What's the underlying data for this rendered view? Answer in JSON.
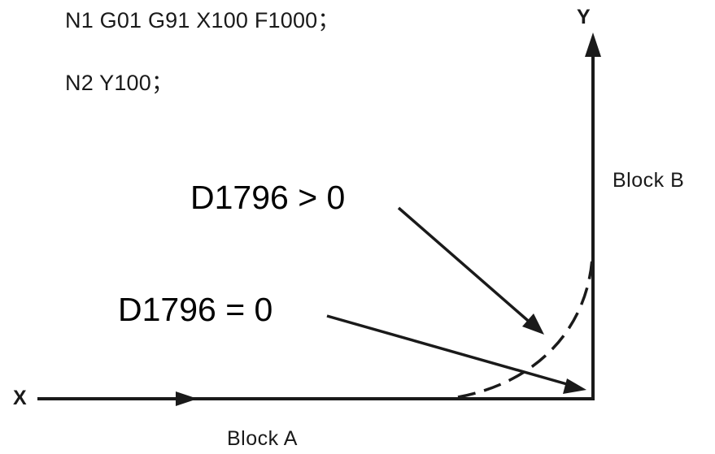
{
  "code": {
    "line1": "N1 G01 G91 X100 F1000；",
    "line2": "N2 Y100；"
  },
  "axes": {
    "x_label": "X",
    "y_label": "Y"
  },
  "blocks": {
    "a_label": "Block A",
    "b_label": "Block B"
  },
  "conditions": {
    "gt_label": "D1796 > 0",
    "eq_label": "D1796 = 0"
  },
  "colors": {
    "line": "#1a1a1a",
    "background": "#ffffff"
  }
}
